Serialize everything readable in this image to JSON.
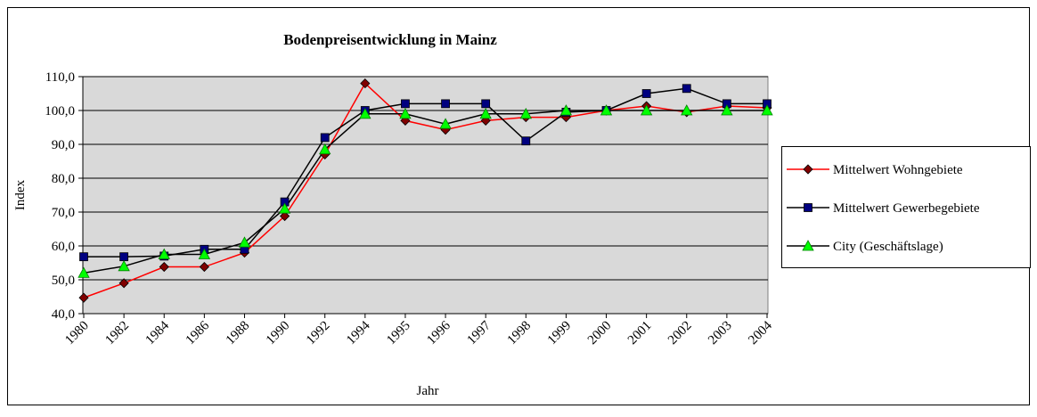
{
  "chart_data": {
    "type": "line",
    "title": "Bodenpreisentwicklung in Mainz",
    "x_label": "Jahr",
    "y_label": "Index",
    "categories": [
      "1980",
      "1982",
      "1984",
      "1986",
      "1988",
      "1990",
      "1992",
      "1994",
      "1995",
      "1996",
      "1997",
      "1998",
      "1999",
      "2000",
      "2001",
      "2002",
      "2003",
      "2004"
    ],
    "series": [
      {
        "name": "Mittelwert Wohngebiete",
        "color": "#ff0000",
        "marker": "diamond",
        "marker_color": "#800000",
        "values": [
          44.7,
          49,
          53.8,
          53.8,
          58,
          68.8,
          87,
          108,
          97,
          94.3,
          97,
          98,
          98,
          100,
          101.3,
          99.5,
          101.3,
          100.8
        ]
      },
      {
        "name": "Mittelwert Gewerbegebiete",
        "color": "#000000",
        "marker": "square",
        "marker_color": "#000080",
        "values": [
          56.8,
          56.8,
          57,
          59,
          59,
          73,
          92,
          100,
          102,
          102,
          102,
          91,
          99.5,
          100,
          105,
          106.5,
          102,
          102
        ]
      },
      {
        "name": "City  (Geschäftslage)",
        "color": "#000000",
        "marker": "triangle",
        "marker_color": "#00ff00",
        "values": [
          52,
          54,
          57.5,
          57.5,
          61,
          71,
          88.5,
          99,
          99,
          96,
          99,
          99,
          100,
          100,
          100,
          100,
          100,
          100
        ]
      }
    ],
    "ylim": [
      40,
      110
    ],
    "yticks": [
      {
        "value": 40,
        "label": "40,0"
      },
      {
        "value": 50,
        "label": "50,0"
      },
      {
        "value": 60,
        "label": "60,0"
      },
      {
        "value": 70,
        "label": "70,0"
      },
      {
        "value": 80,
        "label": "80,0"
      },
      {
        "value": 90,
        "label": "90,0"
      },
      {
        "value": 100,
        "label": "100,0"
      },
      {
        "value": 110,
        "label": "110,0"
      }
    ],
    "grid": true,
    "plot_background": "#d9d9d9",
    "legend_position": "right"
  }
}
